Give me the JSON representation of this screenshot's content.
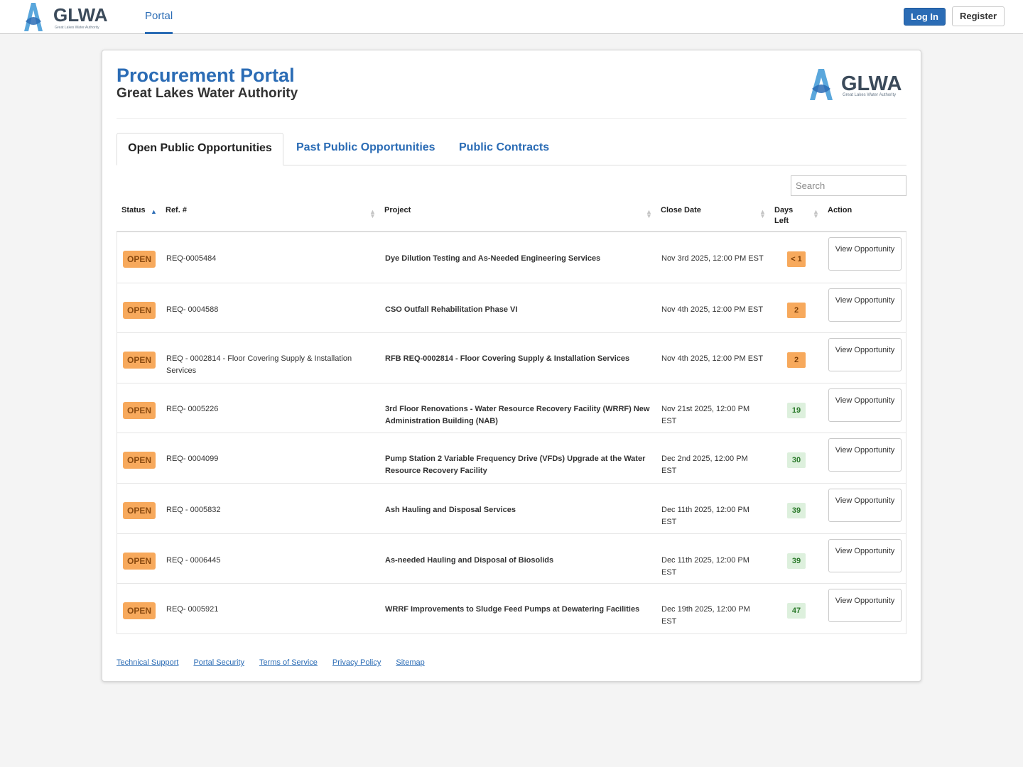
{
  "nav": {
    "logo_text": "GLWA",
    "logo_tagline": "Great Lakes Water Authority",
    "portal_tab": "Portal",
    "login_label": "Log In",
    "register_label": "Register"
  },
  "header": {
    "title": "Procurement Portal",
    "subtitle": "Great Lakes Water Authority"
  },
  "tabs": [
    {
      "label": "Open Public Opportunities",
      "active": true
    },
    {
      "label": "Past Public Opportunities",
      "active": false
    },
    {
      "label": "Public Contracts",
      "active": false
    }
  ],
  "search": {
    "placeholder": "Search",
    "value": ""
  },
  "table": {
    "columns": {
      "status": "Status",
      "ref": "Ref. #",
      "project": "Project",
      "close_date": "Close Date",
      "days_left": "Days Left",
      "action": "Action"
    },
    "rows": [
      {
        "status": "OPEN",
        "ref": "REQ-0005484",
        "project": "Dye Dilution Testing and As-Needed Engineering Services",
        "close_date": "Nov 3rd 2025, 12:00 PM EST",
        "days_left": "< 1",
        "urgent": true,
        "action": "View Opportunity"
      },
      {
        "status": "OPEN",
        "ref": "REQ- 0004588",
        "project": "CSO Outfall Rehabilitation Phase VI",
        "close_date": "Nov 4th 2025, 12:00 PM EST",
        "days_left": "2",
        "urgent": true,
        "action": "View Opportunity"
      },
      {
        "status": "OPEN",
        "ref": "REQ - 0002814 - Floor Covering Supply & Installation Services",
        "project": "RFB REQ-0002814 - Floor Covering Supply & Installation Services",
        "close_date": "Nov 4th 2025, 12:00 PM EST",
        "days_left": "2",
        "urgent": true,
        "action": "View Opportunity"
      },
      {
        "status": "OPEN",
        "ref": "REQ- 0005226",
        "project": "3rd Floor Renovations - Water Resource Recovery Facility (WRRF) New Administration Building (NAB)",
        "close_date": "Nov 21st 2025, 12:00 PM EST",
        "days_left": "19",
        "urgent": false,
        "action": "View Opportunity"
      },
      {
        "status": "OPEN",
        "ref": "REQ- 0004099",
        "project": "Pump Station 2 Variable Frequency Drive (VFDs) Upgrade at the Water Resource Recovery Facility",
        "close_date": "Dec 2nd 2025, 12:00 PM EST",
        "days_left": "30",
        "urgent": false,
        "action": "View Opportunity"
      },
      {
        "status": "OPEN",
        "ref": "REQ - 0005832",
        "project": "Ash Hauling and Disposal Services",
        "close_date": "Dec 11th 2025, 12:00 PM EST",
        "days_left": "39",
        "urgent": false,
        "action": "View Opportunity"
      },
      {
        "status": "OPEN",
        "ref": "REQ - 0006445",
        "project": "As-needed Hauling and Disposal of Biosolids",
        "close_date": "Dec 11th 2025, 12:00 PM EST",
        "days_left": "39",
        "urgent": false,
        "action": "View Opportunity"
      },
      {
        "status": "OPEN",
        "ref": "REQ- 0005921",
        "project": "WRRF Improvements to Sludge Feed Pumps at Dewatering Facilities",
        "close_date": "Dec 19th 2025, 12:00 PM EST",
        "days_left": "47",
        "urgent": false,
        "action": "View Opportunity"
      }
    ]
  },
  "footer_links": [
    "Technical Support",
    "Portal Security",
    "Terms of Service",
    "Privacy Policy",
    "Sitemap"
  ],
  "colors": {
    "brand_blue": "#2b6cb5",
    "open_badge": "#f7a95c",
    "days_urgent": "#f7a95c",
    "days_ok": "#ddf0dd"
  }
}
